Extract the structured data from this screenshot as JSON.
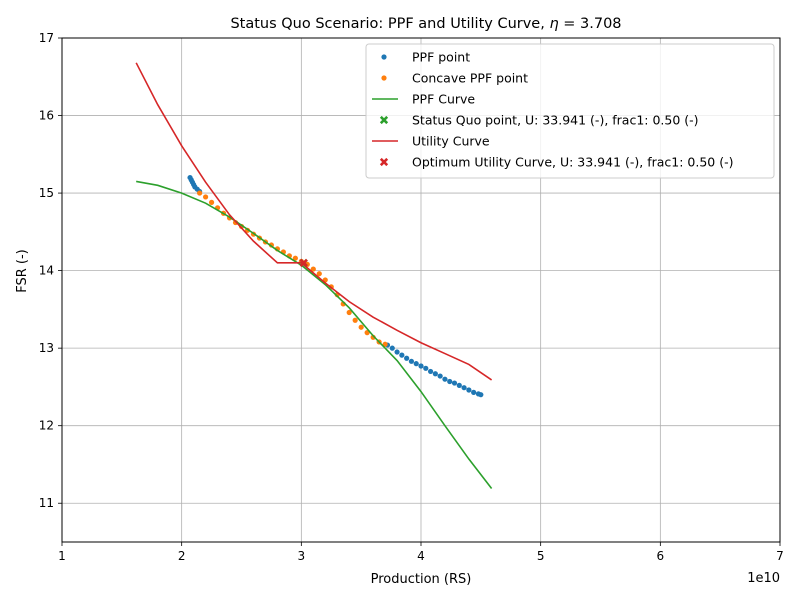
{
  "chart_data": {
    "type": "scatter",
    "title": "Status Quo Scenario: PPF and Utility Curve, η = 3.708",
    "title_prefix": "Status Quo Scenario: PPF and Utility Curve, ",
    "title_eta_symbol": "η",
    "title_eta_value": " = 3.708",
    "xlabel": "Production (RS)",
    "ylabel": "FSR (-)",
    "x_offset_label": "1e10",
    "xlim": [
      1.0,
      7.0
    ],
    "ylim": [
      10.5,
      17.0
    ],
    "x_scale_factor": "1e10",
    "xticks": [
      1,
      2,
      3,
      4,
      5,
      6,
      7
    ],
    "yticks": [
      11,
      12,
      13,
      14,
      15,
      16,
      17
    ],
    "grid": true,
    "legend_position": "top-right",
    "colors": {
      "ppf_point": "#1f77b4",
      "concave_ppf_point": "#ff7f0e",
      "ppf_curve": "#2ca02c",
      "utility_curve": "#d62728"
    },
    "series": [
      {
        "name": "PPF point",
        "kind": "markers",
        "marker": "dot",
        "color": "#1f77b4",
        "x": [
          2.07,
          2.08,
          2.09,
          2.1,
          2.11,
          2.13,
          2.15,
          3.72,
          3.76,
          3.8,
          3.84,
          3.88,
          3.92,
          3.96,
          4.0,
          4.04,
          4.08,
          4.12,
          4.16,
          4.2,
          4.24,
          4.28,
          4.32,
          4.36,
          4.4,
          4.44,
          4.48,
          4.5
        ],
        "y": [
          15.2,
          15.17,
          15.14,
          15.11,
          15.08,
          15.05,
          15.02,
          13.04,
          13.0,
          12.95,
          12.91,
          12.87,
          12.83,
          12.8,
          12.77,
          12.74,
          12.7,
          12.67,
          12.64,
          12.6,
          12.57,
          12.55,
          12.52,
          12.49,
          12.46,
          12.43,
          12.41,
          12.4
        ]
      },
      {
        "name": "Concave PPF point",
        "kind": "markers",
        "marker": "dot",
        "color": "#ff7f0e",
        "x": [
          2.15,
          2.2,
          2.25,
          2.3,
          2.35,
          2.4,
          2.45,
          2.5,
          2.55,
          2.6,
          2.65,
          2.7,
          2.75,
          2.8,
          2.85,
          2.9,
          2.95,
          3.0,
          3.05,
          3.1,
          3.15,
          3.2,
          3.25,
          3.3,
          3.35,
          3.4,
          3.45,
          3.5,
          3.55,
          3.6,
          3.65,
          3.7
        ],
        "y": [
          15.0,
          14.95,
          14.88,
          14.81,
          14.74,
          14.68,
          14.62,
          14.57,
          14.52,
          14.47,
          14.42,
          14.37,
          14.33,
          14.28,
          14.24,
          14.19,
          14.16,
          14.12,
          14.08,
          14.02,
          13.96,
          13.88,
          13.79,
          13.69,
          13.57,
          13.46,
          13.36,
          13.27,
          13.2,
          13.14,
          13.08,
          13.05
        ]
      },
      {
        "name": "PPF Curve",
        "kind": "line",
        "color": "#2ca02c",
        "x": [
          1.62,
          1.8,
          2.0,
          2.2,
          2.4,
          2.6,
          2.8,
          3.0,
          3.2,
          3.4,
          3.6,
          3.8,
          4.0,
          4.2,
          4.4,
          4.59
        ],
        "y": [
          15.15,
          15.1,
          15.0,
          14.87,
          14.69,
          14.48,
          14.26,
          14.07,
          13.82,
          13.52,
          13.16,
          12.84,
          12.44,
          12.0,
          11.57,
          11.19
        ]
      },
      {
        "name": "Status Quo point, U: 33.941 (-), frac1: 0.50 (-)",
        "kind": "markers",
        "marker": "x",
        "color": "#2ca02c",
        "x": [
          3.02
        ],
        "y": [
          14.1
        ]
      },
      {
        "name": "Utility Curve",
        "kind": "line",
        "color": "#d62728",
        "x": [
          1.62,
          1.8,
          2.0,
          2.2,
          2.4,
          2.6,
          2.8,
          3.0,
          3.2,
          3.4,
          3.6,
          3.8,
          4.0,
          4.2,
          4.4,
          4.59
        ],
        "y": [
          16.68,
          16.14,
          15.61,
          15.14,
          14.72,
          14.38,
          14.1,
          14.1,
          13.84,
          13.6,
          13.4,
          13.23,
          13.07,
          12.93,
          12.79,
          12.59
        ]
      },
      {
        "name": "Optimum Utility Curve, U: 33.941 (-), frac1: 0.50 (-)",
        "kind": "markers",
        "marker": "x",
        "color": "#d62728",
        "x": [
          3.02
        ],
        "y": [
          14.1
        ]
      }
    ]
  }
}
